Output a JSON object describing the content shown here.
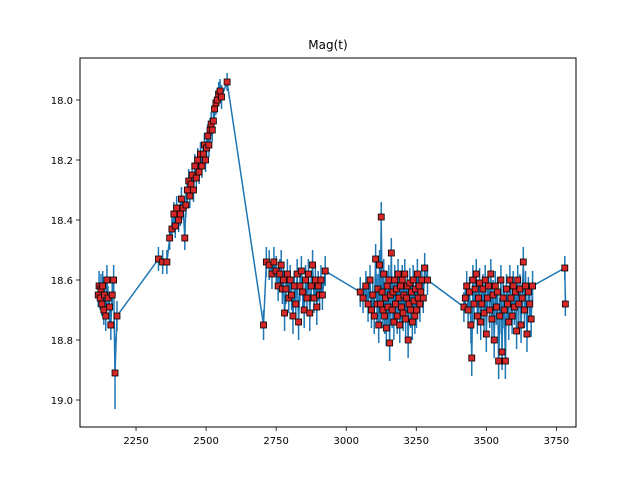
{
  "chart_data": {
    "type": "scatter",
    "title": "Mag(t)",
    "xlabel": "",
    "ylabel": "",
    "xlim": [
      2050,
      3820
    ],
    "ylim": [
      19.09,
      17.86
    ],
    "y_inverted": true,
    "x_ticks": [
      2250,
      2500,
      2750,
      3000,
      3250,
      3500,
      3750
    ],
    "y_ticks": [
      18.0,
      18.2,
      18.4,
      18.6,
      18.8,
      19.0
    ],
    "grid": false,
    "line_color": "#1f77b4",
    "marker_color": "#d62728",
    "marker_edge_color": "#000000",
    "points": [
      [
        2115,
        18.65,
        0.04
      ],
      [
        2118,
        18.62,
        0.05
      ],
      [
        2122,
        18.66,
        0.04
      ],
      [
        2125,
        18.63,
        0.05
      ],
      [
        2128,
        18.68,
        0.04
      ],
      [
        2131,
        18.62,
        0.05
      ],
      [
        2135,
        18.7,
        0.05
      ],
      [
        2138,
        18.65,
        0.04
      ],
      [
        2142,
        18.72,
        0.05
      ],
      [
        2146,
        18.6,
        0.05
      ],
      [
        2150,
        18.66,
        0.04
      ],
      [
        2155,
        18.69,
        0.05
      ],
      [
        2160,
        18.75,
        0.05
      ],
      [
        2165,
        18.65,
        0.05
      ],
      [
        2170,
        18.6,
        0.05
      ],
      [
        2175,
        18.91,
        0.12
      ],
      [
        2182,
        18.72,
        0.05
      ],
      [
        2330,
        18.53,
        0.04
      ],
      [
        2345,
        18.54,
        0.04
      ],
      [
        2360,
        18.54,
        0.04
      ],
      [
        2370,
        18.46,
        0.04
      ],
      [
        2378,
        18.43,
        0.04
      ],
      [
        2385,
        18.38,
        0.04
      ],
      [
        2390,
        18.42,
        0.04
      ],
      [
        2395,
        18.36,
        0.04
      ],
      [
        2402,
        18.4,
        0.04
      ],
      [
        2408,
        18.38,
        0.04
      ],
      [
        2412,
        18.33,
        0.04
      ],
      [
        2418,
        18.36,
        0.04
      ],
      [
        2424,
        18.46,
        0.04
      ],
      [
        2428,
        18.35,
        0.04
      ],
      [
        2433,
        18.3,
        0.04
      ],
      [
        2438,
        18.27,
        0.04
      ],
      [
        2442,
        18.32,
        0.04
      ],
      [
        2446,
        18.28,
        0.04
      ],
      [
        2450,
        18.25,
        0.04
      ],
      [
        2455,
        18.3,
        0.04
      ],
      [
        2460,
        18.22,
        0.04
      ],
      [
        2465,
        18.26,
        0.04
      ],
      [
        2470,
        18.2,
        0.04
      ],
      [
        2475,
        18.24,
        0.04
      ],
      [
        2480,
        18.18,
        0.04
      ],
      [
        2485,
        18.22,
        0.04
      ],
      [
        2490,
        18.18,
        0.04
      ],
      [
        2494,
        18.15,
        0.04
      ],
      [
        2498,
        18.2,
        0.04
      ],
      [
        2502,
        18.16,
        0.04
      ],
      [
        2506,
        18.12,
        0.04
      ],
      [
        2510,
        18.15,
        0.04
      ],
      [
        2514,
        18.1,
        0.04
      ],
      [
        2518,
        18.08,
        0.04
      ],
      [
        2522,
        18.1,
        0.04
      ],
      [
        2526,
        18.07,
        0.04
      ],
      [
        2530,
        18.03,
        0.04
      ],
      [
        2535,
        18.01,
        0.04
      ],
      [
        2540,
        18.0,
        0.04
      ],
      [
        2545,
        17.98,
        0.04
      ],
      [
        2550,
        17.97,
        0.04
      ],
      [
        2555,
        17.99,
        0.04
      ],
      [
        2575,
        17.94,
        0.03
      ],
      [
        2705,
        18.75,
        0.05
      ],
      [
        2715,
        18.54,
        0.05
      ],
      [
        2725,
        18.55,
        0.05
      ],
      [
        2735,
        18.58,
        0.05
      ],
      [
        2742,
        18.54,
        0.05
      ],
      [
        2750,
        18.57,
        0.05
      ],
      [
        2757,
        18.62,
        0.05
      ],
      [
        2763,
        18.58,
        0.05
      ],
      [
        2768,
        18.55,
        0.05
      ],
      [
        2772,
        18.63,
        0.05
      ],
      [
        2776,
        18.6,
        0.05
      ],
      [
        2780,
        18.71,
        0.06
      ],
      [
        2785,
        18.63,
        0.05
      ],
      [
        2790,
        18.58,
        0.05
      ],
      [
        2795,
        18.66,
        0.05
      ],
      [
        2800,
        18.6,
        0.05
      ],
      [
        2805,
        18.65,
        0.05
      ],
      [
        2810,
        18.72,
        0.06
      ],
      [
        2815,
        18.62,
        0.05
      ],
      [
        2820,
        18.68,
        0.05
      ],
      [
        2825,
        18.58,
        0.05
      ],
      [
        2830,
        18.74,
        0.06
      ],
      [
        2835,
        18.62,
        0.05
      ],
      [
        2840,
        18.57,
        0.05
      ],
      [
        2845,
        18.64,
        0.05
      ],
      [
        2850,
        18.7,
        0.06
      ],
      [
        2855,
        18.6,
        0.05
      ],
      [
        2860,
        18.66,
        0.05
      ],
      [
        2865,
        18.58,
        0.05
      ],
      [
        2870,
        18.71,
        0.06
      ],
      [
        2875,
        18.62,
        0.05
      ],
      [
        2880,
        18.55,
        0.05
      ],
      [
        2885,
        18.66,
        0.05
      ],
      [
        2890,
        18.6,
        0.05
      ],
      [
        2895,
        18.69,
        0.06
      ],
      [
        2900,
        18.62,
        0.05
      ],
      [
        2905,
        18.65,
        0.05
      ],
      [
        2910,
        18.6,
        0.05
      ],
      [
        2915,
        18.65,
        0.05
      ],
      [
        2925,
        18.57,
        0.05
      ],
      [
        3050,
        18.64,
        0.05
      ],
      [
        3060,
        18.66,
        0.05
      ],
      [
        3070,
        18.62,
        0.05
      ],
      [
        3078,
        18.68,
        0.06
      ],
      [
        3085,
        18.6,
        0.05
      ],
      [
        3090,
        18.7,
        0.06
      ],
      [
        3095,
        18.65,
        0.05
      ],
      [
        3100,
        18.72,
        0.06
      ],
      [
        3105,
        18.53,
        0.05
      ],
      [
        3110,
        18.68,
        0.06
      ],
      [
        3113,
        18.63,
        0.05
      ],
      [
        3116,
        18.75,
        0.06
      ],
      [
        3119,
        18.55,
        0.05
      ],
      [
        3122,
        18.68,
        0.06
      ],
      [
        3125,
        18.39,
        0.05
      ],
      [
        3128,
        18.64,
        0.05
      ],
      [
        3131,
        18.7,
        0.06
      ],
      [
        3134,
        18.58,
        0.05
      ],
      [
        3137,
        18.72,
        0.06
      ],
      [
        3140,
        18.66,
        0.05
      ],
      [
        3143,
        18.76,
        0.06
      ],
      [
        3146,
        18.62,
        0.05
      ],
      [
        3149,
        18.69,
        0.06
      ],
      [
        3152,
        18.6,
        0.05
      ],
      [
        3155,
        18.81,
        0.06
      ],
      [
        3158,
        18.65,
        0.05
      ],
      [
        3161,
        18.51,
        0.05
      ],
      [
        3164,
        18.7,
        0.06
      ],
      [
        3167,
        18.64,
        0.05
      ],
      [
        3170,
        18.74,
        0.06
      ],
      [
        3173,
        18.6,
        0.05
      ],
      [
        3176,
        18.68,
        0.06
      ],
      [
        3179,
        18.63,
        0.05
      ],
      [
        3182,
        18.72,
        0.06
      ],
      [
        3185,
        18.58,
        0.05
      ],
      [
        3188,
        18.66,
        0.05
      ],
      [
        3191,
        18.75,
        0.06
      ],
      [
        3194,
        18.62,
        0.05
      ],
      [
        3197,
        18.69,
        0.06
      ],
      [
        3200,
        18.6,
        0.05
      ],
      [
        3203,
        18.71,
        0.06
      ],
      [
        3206,
        18.65,
        0.05
      ],
      [
        3209,
        18.58,
        0.05
      ],
      [
        3212,
        18.73,
        0.06
      ],
      [
        3215,
        18.66,
        0.05
      ],
      [
        3218,
        18.62,
        0.05
      ],
      [
        3221,
        18.8,
        0.06
      ],
      [
        3224,
        18.68,
        0.06
      ],
      [
        3227,
        18.61,
        0.05
      ],
      [
        3230,
        18.7,
        0.06
      ],
      [
        3233,
        18.64,
        0.05
      ],
      [
        3236,
        18.74,
        0.06
      ],
      [
        3239,
        18.6,
        0.05
      ],
      [
        3242,
        18.67,
        0.05
      ],
      [
        3245,
        18.72,
        0.06
      ],
      [
        3248,
        18.63,
        0.05
      ],
      [
        3251,
        18.7,
        0.06
      ],
      [
        3254,
        18.58,
        0.05
      ],
      [
        3257,
        18.66,
        0.05
      ],
      [
        3260,
        18.62,
        0.05
      ],
      [
        3263,
        18.68,
        0.06
      ],
      [
        3266,
        18.64,
        0.05
      ],
      [
        3270,
        18.6,
        0.05
      ],
      [
        3275,
        18.66,
        0.05
      ],
      [
        3280,
        18.56,
        0.05
      ],
      [
        3290,
        18.6,
        0.05
      ],
      [
        3420,
        18.69,
        0.05
      ],
      [
        3425,
        18.66,
        0.05
      ],
      [
        3430,
        18.62,
        0.05
      ],
      [
        3435,
        18.7,
        0.06
      ],
      [
        3440,
        18.64,
        0.05
      ],
      [
        3445,
        18.75,
        0.06
      ],
      [
        3448,
        18.86,
        0.06
      ],
      [
        3452,
        18.6,
        0.05
      ],
      [
        3456,
        18.68,
        0.06
      ],
      [
        3460,
        18.63,
        0.05
      ],
      [
        3464,
        18.58,
        0.05
      ],
      [
        3468,
        18.72,
        0.06
      ],
      [
        3472,
        18.66,
        0.05
      ],
      [
        3476,
        18.61,
        0.05
      ],
      [
        3480,
        18.74,
        0.06
      ],
      [
        3484,
        18.68,
        0.06
      ],
      [
        3488,
        18.63,
        0.05
      ],
      [
        3492,
        18.71,
        0.06
      ],
      [
        3496,
        18.6,
        0.05
      ],
      [
        3500,
        18.78,
        0.06
      ],
      [
        3504,
        18.66,
        0.05
      ],
      [
        3508,
        18.62,
        0.05
      ],
      [
        3512,
        18.7,
        0.06
      ],
      [
        3516,
        18.58,
        0.05
      ],
      [
        3520,
        18.73,
        0.06
      ],
      [
        3524,
        18.65,
        0.05
      ],
      [
        3528,
        18.8,
        0.06
      ],
      [
        3532,
        18.62,
        0.05
      ],
      [
        3536,
        18.69,
        0.06
      ],
      [
        3540,
        18.64,
        0.05
      ],
      [
        3544,
        18.87,
        0.06
      ],
      [
        3548,
        18.72,
        0.06
      ],
      [
        3552,
        18.6,
        0.05
      ],
      [
        3556,
        18.84,
        0.06
      ],
      [
        3560,
        18.66,
        0.05
      ],
      [
        3564,
        18.7,
        0.06
      ],
      [
        3568,
        18.87,
        0.06
      ],
      [
        3572,
        18.63,
        0.05
      ],
      [
        3576,
        18.68,
        0.06
      ],
      [
        3580,
        18.74,
        0.06
      ],
      [
        3584,
        18.6,
        0.05
      ],
      [
        3588,
        18.66,
        0.05
      ],
      [
        3592,
        18.72,
        0.06
      ],
      [
        3596,
        18.62,
        0.05
      ],
      [
        3600,
        18.69,
        0.06
      ],
      [
        3604,
        18.64,
        0.05
      ],
      [
        3608,
        18.77,
        0.06
      ],
      [
        3612,
        18.6,
        0.05
      ],
      [
        3616,
        18.68,
        0.06
      ],
      [
        3620,
        18.63,
        0.05
      ],
      [
        3624,
        18.75,
        0.06
      ],
      [
        3628,
        18.66,
        0.05
      ],
      [
        3632,
        18.54,
        0.05
      ],
      [
        3636,
        18.7,
        0.06
      ],
      [
        3640,
        18.62,
        0.05
      ],
      [
        3645,
        18.78,
        0.06
      ],
      [
        3650,
        18.64,
        0.05
      ],
      [
        3655,
        18.68,
        0.06
      ],
      [
        3660,
        18.73,
        0.06
      ],
      [
        3665,
        18.62,
        0.05
      ],
      [
        3780,
        18.56,
        0.04
      ],
      [
        3782,
        18.68,
        0.04
      ]
    ]
  }
}
